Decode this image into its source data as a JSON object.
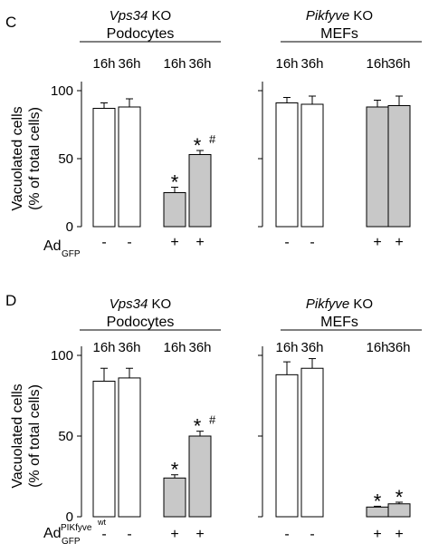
{
  "panels": [
    {
      "label": "C",
      "ylabel_line1": "Vacuolated cells",
      "ylabel_line2": "(% of total cells)",
      "row_label_main": "Ad",
      "row_label_sub": "GFP",
      "row_label_sup": "",
      "groups": [
        {
          "title_italic": "Vps34",
          "title_rest": " KO",
          "subtitle": "Podocytes"
        },
        {
          "title_italic": "Pikfyve",
          "title_rest": " KO",
          "subtitle": "MEFs"
        }
      ]
    },
    {
      "label": "D",
      "ylabel_line1": "Vacuolated cells",
      "ylabel_line2": "(% of total cells)",
      "row_label_main": "Ad",
      "row_label_sub": "GFP",
      "row_label_sup": "PIKfyve",
      "row_label_sup2": "wt",
      "groups": [
        {
          "title_italic": "Vps34",
          "title_rest": " KO",
          "subtitle": "Podocytes"
        },
        {
          "title_italic": "Pikfyve",
          "title_rest": " KO",
          "subtitle": "MEFs"
        }
      ]
    }
  ],
  "chart_data": [
    {
      "type": "bar",
      "panel": "C",
      "subplots": [
        {
          "title": "Vps34 KO Podocytes",
          "categories": [
            "16h",
            "36h",
            "16h",
            "36h"
          ],
          "treatment": [
            "-",
            "-",
            "+",
            "+"
          ],
          "values": [
            87,
            88,
            25,
            53
          ],
          "errors": [
            4,
            6,
            4,
            3
          ],
          "colors": [
            "#ffffff",
            "#ffffff",
            "#c8c8c8",
            "#c8c8c8"
          ],
          "annotations": [
            "",
            "",
            "*",
            "*#"
          ],
          "yticks": [
            0,
            50,
            100
          ],
          "ylim": [
            0,
            100
          ]
        },
        {
          "title": "Pikfyve KO MEFs",
          "categories": [
            "16h",
            "36h",
            "16h",
            "36h"
          ],
          "treatment": [
            "-",
            "-",
            "+",
            "+"
          ],
          "values": [
            91,
            90,
            88,
            89
          ],
          "errors": [
            4,
            6,
            5,
            7
          ],
          "colors": [
            "#ffffff",
            "#ffffff",
            "#c8c8c8",
            "#c8c8c8"
          ],
          "annotations": [
            "",
            "",
            "",
            ""
          ],
          "yticks": [
            0,
            50,
            100
          ],
          "ylim": [
            0,
            100
          ]
        }
      ]
    },
    {
      "type": "bar",
      "panel": "D",
      "subplots": [
        {
          "title": "Vps34 KO Podocytes",
          "categories": [
            "16h",
            "36h",
            "16h",
            "36h"
          ],
          "treatment": [
            "-",
            "-",
            "+",
            "+"
          ],
          "values": [
            84,
            86,
            24,
            50
          ],
          "errors": [
            8,
            6,
            2,
            3
          ],
          "colors": [
            "#ffffff",
            "#ffffff",
            "#c8c8c8",
            "#c8c8c8"
          ],
          "annotations": [
            "",
            "",
            "*",
            "*#"
          ],
          "yticks": [
            0,
            50,
            100
          ],
          "ylim": [
            0,
            100
          ]
        },
        {
          "title": "Pikfyve KO MEFs",
          "categories": [
            "16h",
            "36h",
            "16h",
            "36h"
          ],
          "treatment": [
            "-",
            "-",
            "+",
            "+"
          ],
          "values": [
            88,
            92,
            6,
            8
          ],
          "errors": [
            8,
            6,
            0.5,
            1
          ],
          "colors": [
            "#ffffff",
            "#ffffff",
            "#c8c8c8",
            "#c8c8c8"
          ],
          "annotations": [
            "",
            "",
            "*",
            "*"
          ],
          "yticks": [
            0,
            50,
            100
          ],
          "ylim": [
            0,
            100
          ]
        }
      ]
    }
  ]
}
